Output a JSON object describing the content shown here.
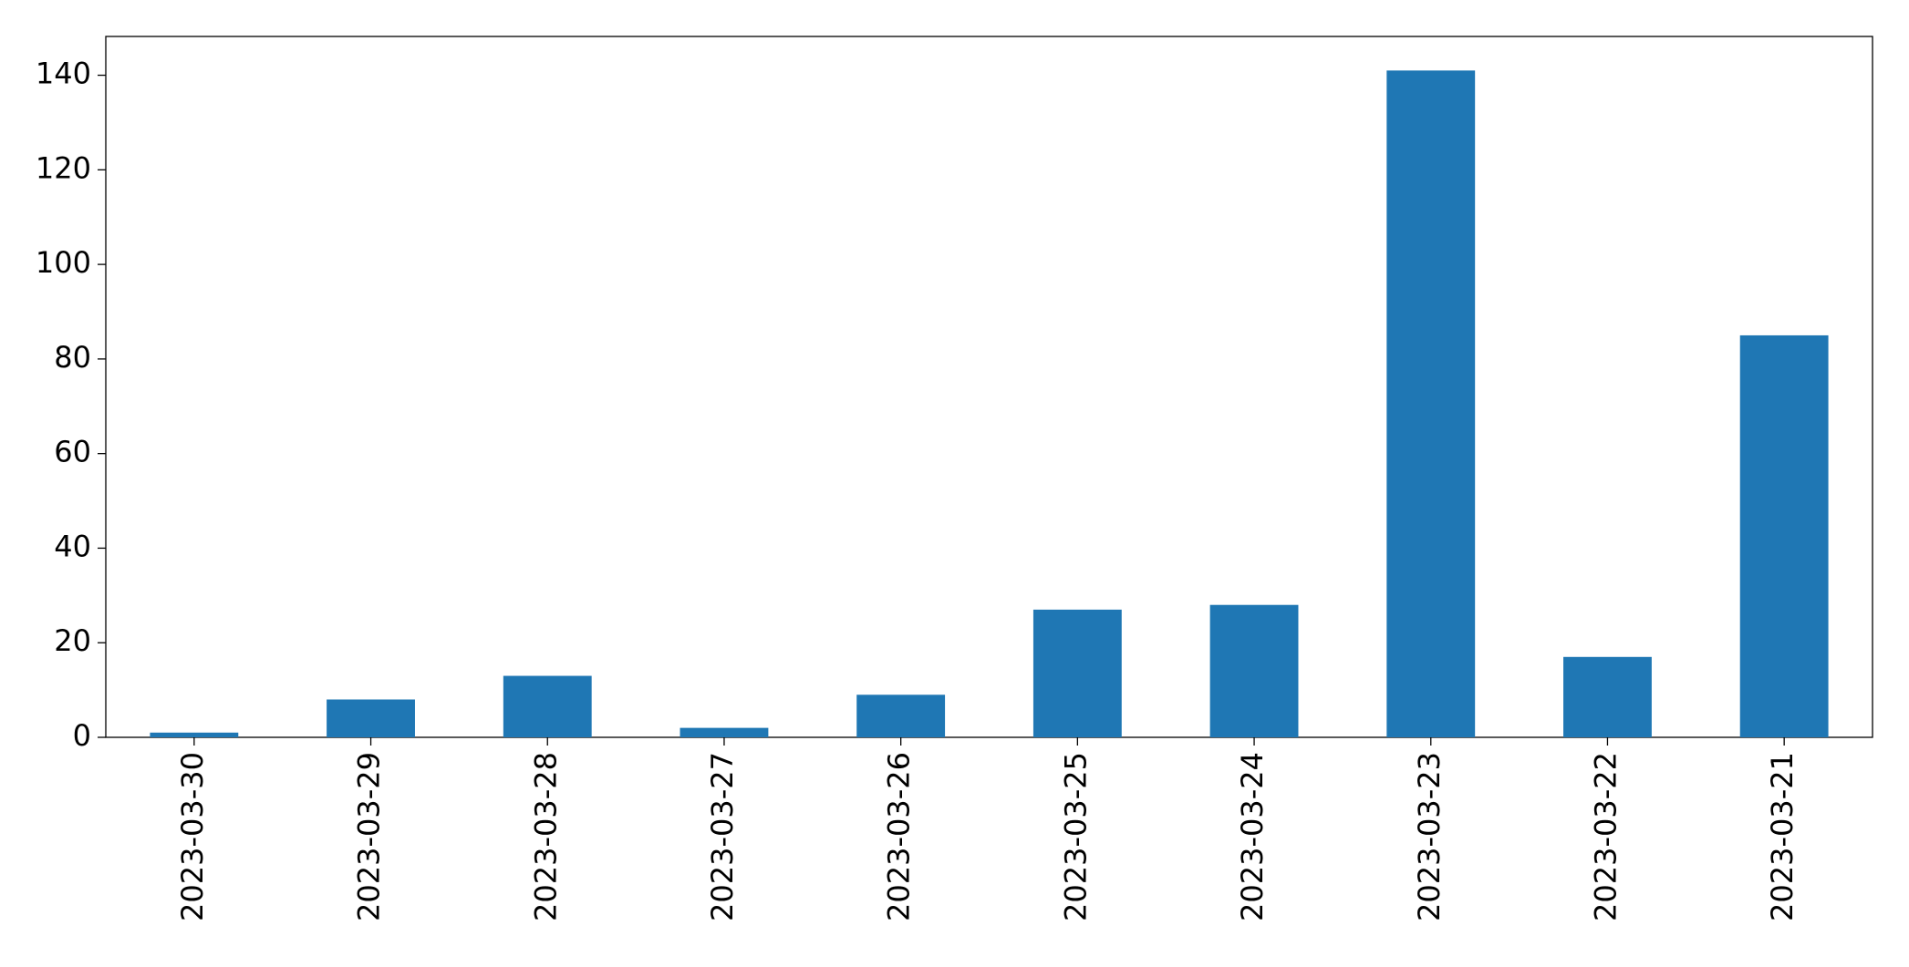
{
  "chart_data": {
    "type": "bar",
    "categories": [
      "2023-03-30",
      "2023-03-29",
      "2023-03-28",
      "2023-03-27",
      "2023-03-26",
      "2023-03-25",
      "2023-03-24",
      "2023-03-23",
      "2023-03-22",
      "2023-03-21"
    ],
    "values": [
      1,
      8,
      13,
      2,
      9,
      27,
      28,
      141,
      17,
      85
    ],
    "color": "#1f77b4",
    "ylim": [
      0,
      148.2
    ],
    "yticks": [
      0,
      20,
      40,
      60,
      80,
      100,
      120,
      140
    ],
    "grid": false
  }
}
